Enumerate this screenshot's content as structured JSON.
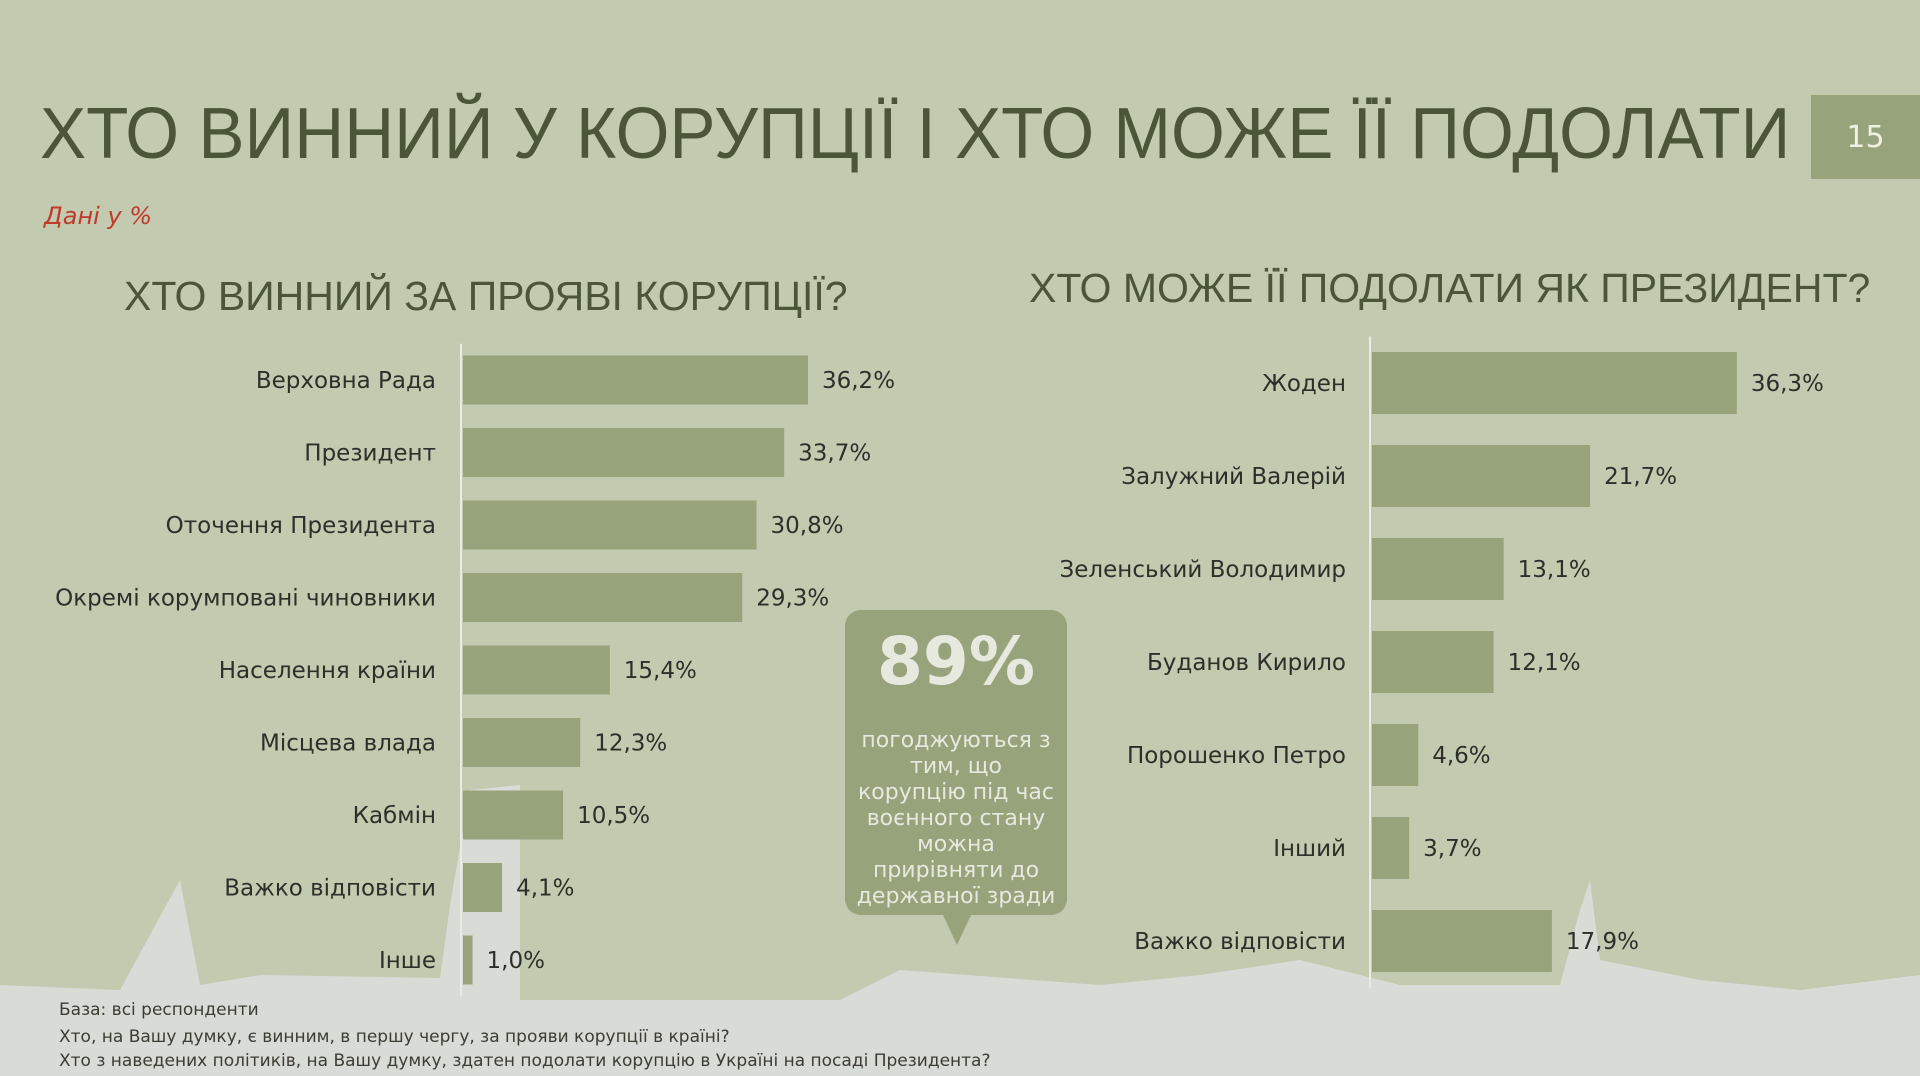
{
  "title": "ХТО ВИННИЙ У КОРУПЦІЇ І ХТО МОЖЕ ЇЇ ПОДОЛАТИ",
  "page_number": "15",
  "units_note": "Дані у %",
  "colors": {
    "background": "#c2cab0",
    "bar": "#97a37b",
    "title": "#4b5639",
    "note": "#c0392b"
  },
  "callout": {
    "value": "89%",
    "text": "погоджуються з тим, що корупцію під час воєнного стану можна прирівняти до державної зради"
  },
  "footnotes": [
    "База: всі респонденти",
    "Хто, на Вашу думку, є винним, в першу чергу, за прояви корупції в країні?",
    "Хто з наведених політиків, на Вашу думку, здатен подолати корупцію в Україні на посаді Президента?"
  ],
  "chart_data": [
    {
      "type": "bar",
      "orientation": "horizontal",
      "title": "ХТО ВИННИЙ ЗА ПРОЯВІ КОРУПЦІЇ?",
      "categories": [
        "Верховна Рада",
        "Президент",
        "Оточення Президента",
        "Окремі корумповані чиновники",
        "Населення країни",
        "Місцева влада",
        "Кабмін",
        "Важко відповісти",
        "Інше"
      ],
      "values": [
        36.2,
        33.7,
        30.8,
        29.3,
        15.4,
        12.3,
        10.5,
        4.1,
        1.0
      ],
      "labels": [
        "36,2%",
        "33,7%",
        "30,8%",
        "29,3%",
        "15,4%",
        "12,3%",
        "10,5%",
        "4,1%",
        "1,0%"
      ]
    },
    {
      "type": "bar",
      "orientation": "horizontal",
      "title": "ХТО МОЖЕ ЇЇ ПОДОЛАТИ ЯК ПРЕЗИДЕНТ?",
      "categories": [
        "Жоден",
        "Залужний Валерій",
        "Зеленський Володимир",
        "Буданов Кирило",
        "Порошенко Петро",
        "Інший",
        "Важко відповісти"
      ],
      "values": [
        36.3,
        21.7,
        13.1,
        12.1,
        4.6,
        3.7,
        17.9
      ],
      "labels": [
        "36,3%",
        "21,7%",
        "13,1%",
        "12,1%",
        "4,6%",
        "3,7%",
        "17,9%"
      ]
    }
  ]
}
